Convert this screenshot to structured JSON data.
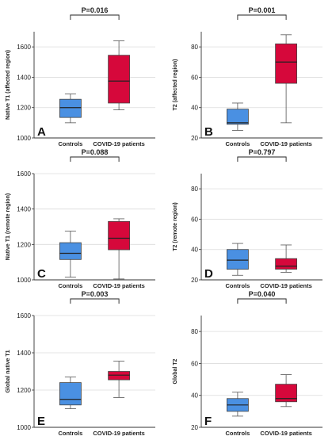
{
  "figure": {
    "description": ""
  },
  "colors": {
    "controls": "#4a90e2",
    "covid": "#d6083b",
    "grid": "#dcdcdc",
    "axis": "#333333"
  },
  "chart_data": [
    {
      "type": "box",
      "panel_letter": "A",
      "ylabel": "Native T1 (affected region)",
      "ylim": [
        1000,
        1700
      ],
      "yticks": [
        1000,
        1200,
        1400,
        1600
      ],
      "categories": [
        "Controls",
        "COVID-19 patients"
      ],
      "p_value": "P=0.016",
      "boxes": [
        {
          "category": "Controls",
          "min": 1100,
          "q1": 1135,
          "median": 1200,
          "q3": 1255,
          "max": 1290
        },
        {
          "category": "COVID-19 patients",
          "min": 1185,
          "q1": 1230,
          "median": 1375,
          "q3": 1545,
          "max": 1640
        }
      ]
    },
    {
      "type": "box",
      "panel_letter": "B",
      "ylabel": "T2 (affected region)",
      "ylim": [
        20,
        90
      ],
      "yticks": [
        20,
        40,
        60,
        80
      ],
      "categories": [
        "Controls",
        "COVID-19 patients"
      ],
      "p_value": "P=0.001",
      "boxes": [
        {
          "category": "Controls",
          "min": 25,
          "q1": 29,
          "median": 30,
          "q3": 39,
          "max": 43
        },
        {
          "category": "COVID-19 patients",
          "min": 30,
          "q1": 56,
          "median": 70,
          "q3": 82,
          "max": 88
        }
      ]
    },
    {
      "type": "box",
      "panel_letter": "C",
      "ylabel": "Native T1 (remote region)",
      "ylim": [
        1000,
        1600
      ],
      "yticks": [
        1000,
        1200,
        1400,
        1600
      ],
      "categories": [
        "Controls",
        "COVID-19 patients"
      ],
      "p_value": "P=0.088",
      "boxes": [
        {
          "category": "Controls",
          "min": 1015,
          "q1": 1115,
          "median": 1150,
          "q3": 1210,
          "max": 1275
        },
        {
          "category": "COVID-19 patients",
          "min": 1005,
          "q1": 1170,
          "median": 1235,
          "q3": 1330,
          "max": 1345
        }
      ]
    },
    {
      "type": "box",
      "panel_letter": "D",
      "ylabel": "T2 (remote region)",
      "ylim": [
        20,
        90
      ],
      "yticks": [
        20,
        40,
        60,
        80
      ],
      "categories": [
        "Controls",
        "COVID-19 patients"
      ],
      "p_value": "P=0.797",
      "boxes": [
        {
          "category": "Controls",
          "min": 23,
          "q1": 27,
          "median": 33,
          "q3": 40,
          "max": 44
        },
        {
          "category": "COVID-19 patients",
          "min": 25,
          "q1": 27,
          "median": 29,
          "q3": 34,
          "max": 43
        }
      ]
    },
    {
      "type": "box",
      "panel_letter": "E",
      "ylabel": "Global native T1",
      "ylim": [
        1000,
        1600
      ],
      "yticks": [
        1000,
        1200,
        1400,
        1600
      ],
      "categories": [
        "Controls",
        "COVID-19 patients"
      ],
      "p_value": "P=0.003",
      "boxes": [
        {
          "category": "Controls",
          "min": 1100,
          "q1": 1120,
          "median": 1150,
          "q3": 1240,
          "max": 1270
        },
        {
          "category": "COVID-19 patients",
          "min": 1160,
          "q1": 1255,
          "median": 1280,
          "q3": 1300,
          "max": 1355
        }
      ]
    },
    {
      "type": "box",
      "panel_letter": "F",
      "ylabel": "Global T2",
      "ylim": [
        20,
        90
      ],
      "yticks": [
        20,
        40,
        60,
        80
      ],
      "categories": [
        "Controls",
        "COVID-19 patients"
      ],
      "p_value": "P=0.040",
      "boxes": [
        {
          "category": "Controls",
          "min": 27,
          "q1": 30,
          "median": 34,
          "q3": 38,
          "max": 42
        },
        {
          "category": "COVID-19 patients",
          "min": 33,
          "q1": 36,
          "median": 38,
          "q3": 47,
          "max": 53
        }
      ]
    }
  ]
}
